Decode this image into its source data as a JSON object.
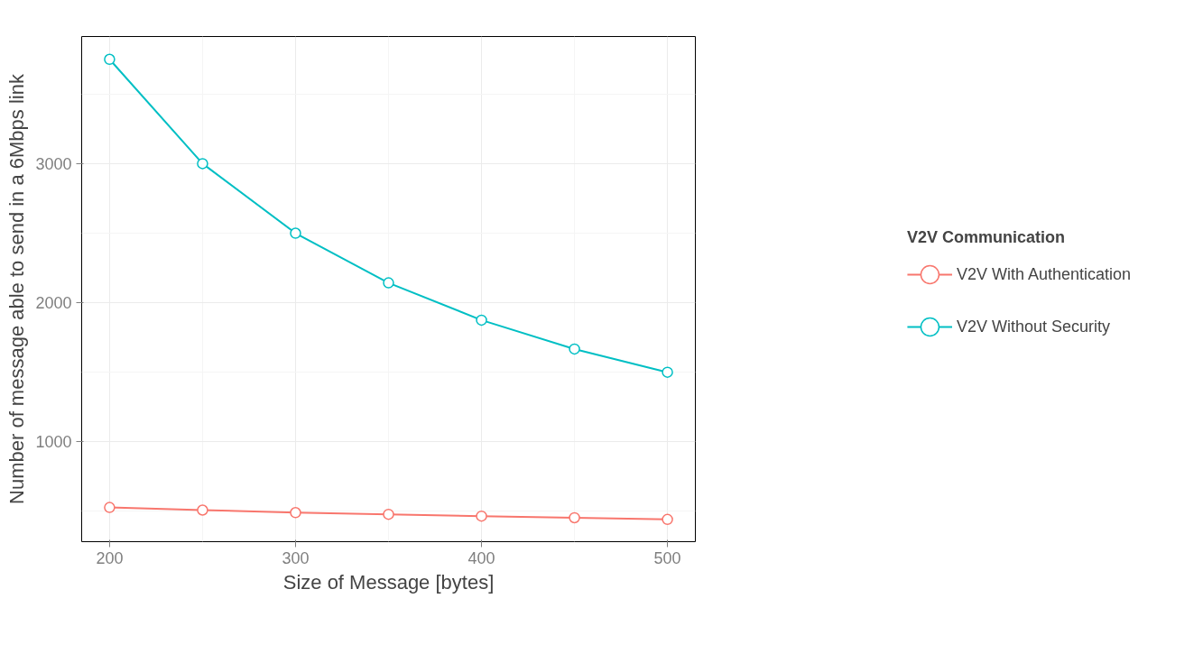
{
  "chart_data": {
    "type": "line",
    "xlabel": "Size of Message [bytes]",
    "ylabel": "Number of message able to send in a 6Mbps link",
    "legend_title": "V2V Communication",
    "x": [
      200,
      250,
      300,
      350,
      400,
      450,
      500
    ],
    "series": [
      {
        "name": "V2V With Authentication",
        "color": "#f8766d",
        "values": [
          528,
          509,
          491,
          479,
          466,
          454,
          442
        ]
      },
      {
        "name": "V2V Without Security",
        "color": "#00bfc4",
        "values": [
          3750,
          3000,
          2500,
          2143,
          1875,
          1667,
          1500
        ]
      }
    ],
    "xlim": [
      185,
      515
    ],
    "ylim": [
      282,
      3914
    ],
    "xticks": [
      200,
      300,
      400,
      500
    ],
    "yticks": [
      1000,
      2000,
      3000
    ],
    "grid": true,
    "legend": "right",
    "marker": "circle",
    "line_style": "solid"
  }
}
